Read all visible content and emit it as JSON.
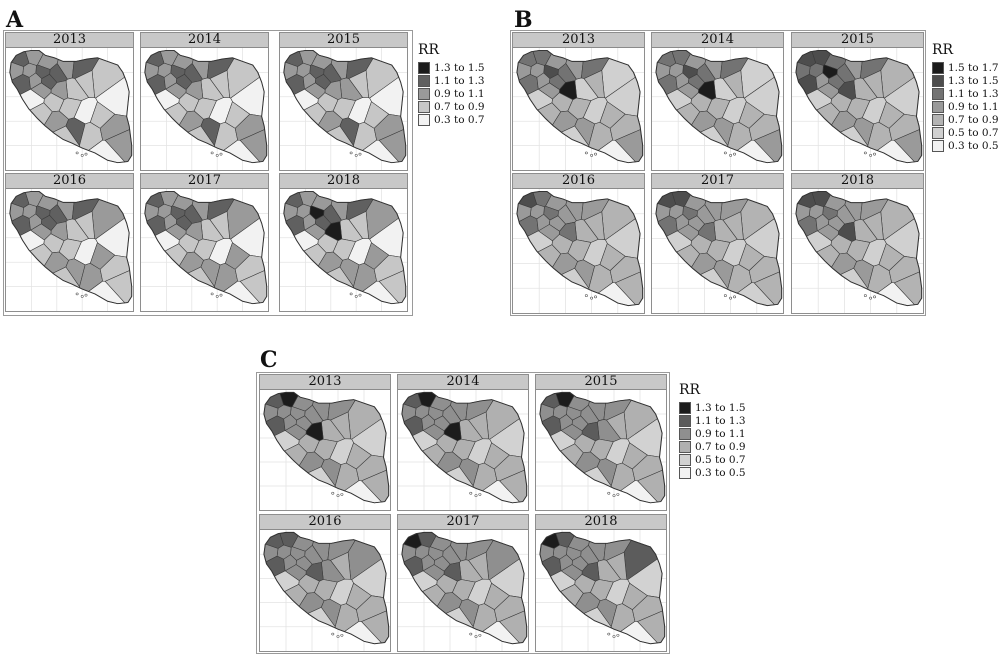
{
  "figure": {
    "groups": [
      {
        "letter": "A",
        "legend": {
          "title": "RR",
          "entries": [
            {
              "label": "1.3 to 1.5",
              "color": "#1c1c1c"
            },
            {
              "label": "1.1 to 1.3",
              "color": "#606060"
            },
            {
              "label": "0.9 to 1.1",
              "color": "#9a9a9a"
            },
            {
              "label": "0.7 to 0.9",
              "color": "#c6c6c6"
            },
            {
              "label": "0.3 to 0.7",
              "color": "#f2f2f2"
            }
          ]
        },
        "panels": [
          {
            "year": "2013",
            "shades": [
              1,
              2,
              2,
              1,
              2,
              2,
              1,
              2,
              1,
              1,
              2,
              1,
              3,
              3,
              4,
              3,
              2,
              2,
              3,
              4,
              3,
              3,
              2,
              4,
              1,
              3,
              3,
              2,
              2,
              4,
              3
            ]
          },
          {
            "year": "2014",
            "shades": [
              1,
              2,
              2,
              1,
              2,
              2,
              1,
              2,
              1,
              1,
              2,
              1,
              3,
              3,
              4,
              3,
              2,
              2,
              3,
              4,
              3,
              3,
              2,
              4,
              1,
              3,
              3,
              2,
              2,
              4,
              3
            ]
          },
          {
            "year": "2015",
            "shades": [
              1,
              2,
              2,
              1,
              2,
              2,
              1,
              2,
              1,
              1,
              2,
              1,
              3,
              3,
              4,
              2,
              2,
              2,
              3,
              4,
              3,
              3,
              2,
              4,
              1,
              3,
              3,
              2,
              2,
              4,
              3
            ]
          },
          {
            "year": "2016",
            "shades": [
              1,
              2,
              2,
              1,
              2,
              2,
              1,
              2,
              1,
              1,
              2,
              1,
              2,
              3,
              4,
              3,
              2,
              2,
              3,
              4,
              3,
              3,
              2,
              4,
              2,
              2,
              2,
              3,
              3,
              4,
              3
            ]
          },
          {
            "year": "2017",
            "shades": [
              1,
              2,
              2,
              1,
              2,
              2,
              1,
              2,
              1,
              1,
              2,
              1,
              2,
              3,
              4,
              3,
              2,
              2,
              3,
              4,
              3,
              3,
              2,
              4,
              2,
              2,
              2,
              3,
              3,
              4,
              3
            ]
          },
          {
            "year": "2018",
            "shades": [
              1,
              2,
              2,
              0,
              2,
              2,
              1,
              2,
              1,
              1,
              2,
              1,
              2,
              3,
              4,
              3,
              0,
              2,
              3,
              4,
              3,
              3,
              2,
              4,
              2,
              2,
              2,
              3,
              3,
              4,
              3
            ]
          }
        ]
      },
      {
        "letter": "B",
        "legend": {
          "title": "RR",
          "entries": [
            {
              "label": "1.5 to 1.7",
              "color": "#1c1c1c"
            },
            {
              "label": "1.3 to 1.5",
              "color": "#4d4d4d"
            },
            {
              "label": "1.1 to 1.3",
              "color": "#737373"
            },
            {
              "label": "0.9 to 1.1",
              "color": "#9a9a9a"
            },
            {
              "label": "0.7 to 0.9",
              "color": "#b3b3b3"
            },
            {
              "label": "0.5 to 0.7",
              "color": "#d0d0d0"
            },
            {
              "label": "0.3 to 0.5",
              "color": "#f2f2f2"
            }
          ]
        },
        "panels": [
          {
            "year": "2013",
            "shades": [
              2,
              2,
              3,
              1,
              3,
              3,
              2,
              3,
              2,
              2,
              3,
              2,
              5,
              4,
              5,
              5,
              0,
              3,
              4,
              5,
              4,
              4,
              3,
              5,
              3,
              4,
              4,
              4,
              3,
              6,
              5
            ]
          },
          {
            "year": "2014",
            "shades": [
              2,
              2,
              3,
              1,
              3,
              3,
              2,
              3,
              2,
              2,
              3,
              2,
              5,
              4,
              5,
              5,
              0,
              3,
              4,
              5,
              4,
              4,
              3,
              5,
              3,
              4,
              4,
              4,
              3,
              6,
              5
            ]
          },
          {
            "year": "2015",
            "shades": [
              1,
              1,
              2,
              0,
              2,
              2,
              1,
              3,
              2,
              2,
              3,
              2,
              4,
              4,
              5,
              4,
              1,
              3,
              4,
              5,
              4,
              4,
              3,
              5,
              3,
              4,
              4,
              4,
              3,
              6,
              5
            ]
          },
          {
            "year": "2016",
            "shades": [
              1,
              2,
              3,
              2,
              3,
              3,
              2,
              3,
              3,
              3,
              3,
              3,
              4,
              4,
              5,
              4,
              2,
              3,
              4,
              5,
              4,
              4,
              3,
              5,
              3,
              4,
              4,
              4,
              4,
              6,
              5
            ]
          },
          {
            "year": "2017",
            "shades": [
              1,
              1,
              3,
              2,
              3,
              3,
              2,
              3,
              3,
              3,
              3,
              3,
              4,
              4,
              5,
              4,
              2,
              3,
              4,
              5,
              4,
              4,
              3,
              5,
              3,
              4,
              4,
              4,
              4,
              5,
              5
            ]
          },
          {
            "year": "2018",
            "shades": [
              1,
              1,
              3,
              2,
              3,
              3,
              2,
              3,
              3,
              3,
              3,
              3,
              4,
              4,
              5,
              4,
              1,
              3,
              4,
              5,
              4,
              4,
              3,
              5,
              3,
              4,
              4,
              4,
              4,
              6,
              5
            ]
          }
        ]
      },
      {
        "letter": "C",
        "legend": {
          "title": "RR",
          "entries": [
            {
              "label": "1.3 to 1.5",
              "color": "#1c1c1c"
            },
            {
              "label": "1.1 to 1.3",
              "color": "#5c5c5c"
            },
            {
              "label": "0.9 to 1.1",
              "color": "#8f8f8f"
            },
            {
              "label": "0.7 to 0.9",
              "color": "#b0b0b0"
            },
            {
              "label": "0.5 to 0.7",
              "color": "#d2d2d2"
            },
            {
              "label": "0.3 to 0.5",
              "color": "#f2f2f2"
            }
          ]
        },
        "panels": [
          {
            "year": "2013",
            "shades": [
              1,
              0,
              2,
              2,
              2,
              2,
              1,
              2,
              2,
              2,
              2,
              2,
              3,
              3,
              4,
              3,
              0,
              2,
              3,
              4,
              3,
              3,
              2,
              4,
              2,
              3,
              3,
              3,
              3,
              5,
              4
            ]
          },
          {
            "year": "2014",
            "shades": [
              1,
              0,
              2,
              2,
              2,
              2,
              1,
              2,
              2,
              2,
              2,
              2,
              3,
              3,
              4,
              3,
              0,
              2,
              3,
              4,
              3,
              3,
              2,
              4,
              2,
              3,
              3,
              3,
              3,
              5,
              4
            ]
          },
          {
            "year": "2015",
            "shades": [
              1,
              0,
              2,
              2,
              2,
              2,
              1,
              2,
              2,
              2,
              2,
              2,
              3,
              3,
              4,
              2,
              1,
              2,
              3,
              4,
              3,
              3,
              2,
              4,
              2,
              3,
              3,
              3,
              3,
              5,
              4
            ]
          },
          {
            "year": "2016",
            "shades": [
              1,
              1,
              2,
              2,
              2,
              2,
              1,
              2,
              2,
              2,
              2,
              2,
              2,
              3,
              4,
              2,
              1,
              2,
              3,
              4,
              3,
              3,
              2,
              4,
              2,
              3,
              3,
              3,
              3,
              5,
              4
            ]
          },
          {
            "year": "2017",
            "shades": [
              0,
              1,
              2,
              2,
              2,
              2,
              1,
              2,
              2,
              2,
              2,
              2,
              2,
              3,
              4,
              3,
              1,
              2,
              3,
              4,
              3,
              3,
              2,
              4,
              2,
              3,
              3,
              3,
              3,
              5,
              4
            ]
          },
          {
            "year": "2018",
            "shades": [
              0,
              1,
              2,
              2,
              2,
              2,
              1,
              2,
              2,
              2,
              2,
              2,
              1,
              3,
              4,
              3,
              1,
              2,
              3,
              4,
              3,
              3,
              2,
              4,
              2,
              3,
              3,
              3,
              3,
              5,
              4
            ]
          }
        ]
      }
    ]
  }
}
